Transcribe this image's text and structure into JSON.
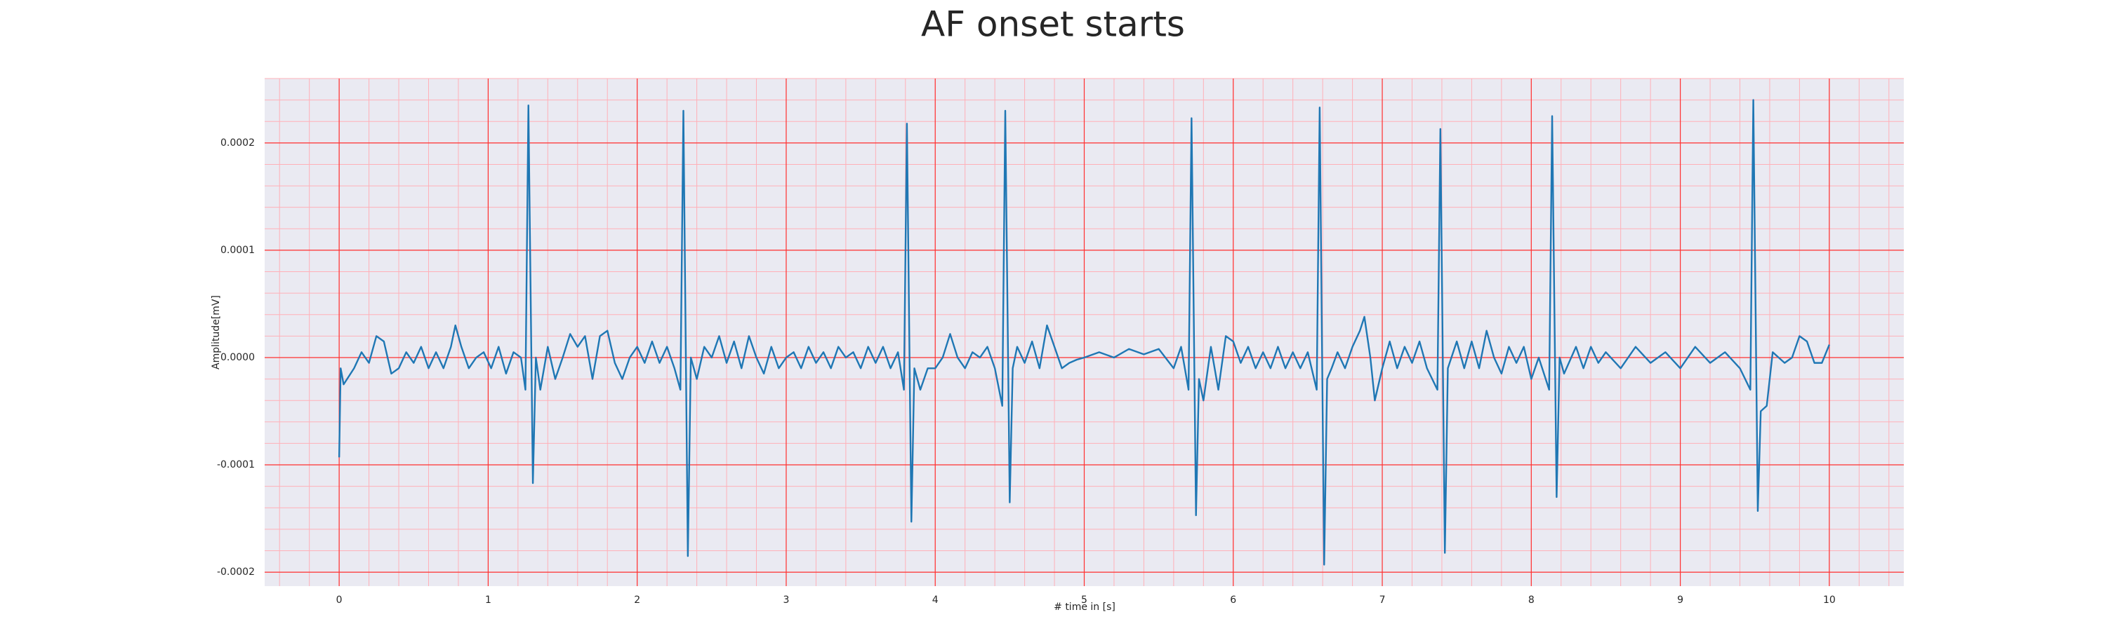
{
  "chart_data": {
    "type": "line",
    "title": "AF onset starts",
    "xlabel": "# time in [s]",
    "ylabel": "Amplitude[mV]",
    "x": [
      0,
      0.01,
      0.03,
      0.1,
      0.15,
      0.2,
      0.25,
      0.3,
      0.35,
      0.4,
      0.45,
      0.5,
      0.55,
      0.6,
      0.65,
      0.7,
      0.75,
      0.78,
      0.82,
      0.87,
      0.92,
      0.97,
      1.02,
      1.07,
      1.12,
      1.17,
      1.22,
      1.25,
      1.27,
      1.3,
      1.32,
      1.35,
      1.4,
      1.45,
      1.5,
      1.55,
      1.6,
      1.65,
      1.7,
      1.75,
      1.8,
      1.85,
      1.9,
      1.95,
      2.0,
      2.05,
      2.1,
      2.15,
      2.2,
      2.25,
      2.29,
      2.31,
      2.34,
      2.36,
      2.4,
      2.45,
      2.5,
      2.55,
      2.6,
      2.65,
      2.7,
      2.75,
      2.8,
      2.85,
      2.9,
      2.95,
      3.0,
      3.05,
      3.1,
      3.15,
      3.2,
      3.25,
      3.3,
      3.35,
      3.4,
      3.45,
      3.5,
      3.55,
      3.6,
      3.65,
      3.7,
      3.75,
      3.79,
      3.81,
      3.84,
      3.86,
      3.9,
      3.95,
      4.0,
      4.05,
      4.1,
      4.15,
      4.2,
      4.25,
      4.3,
      4.35,
      4.4,
      4.45,
      4.47,
      4.5,
      4.52,
      4.55,
      4.6,
      4.65,
      4.7,
      4.75,
      4.8,
      4.85,
      4.9,
      4.95,
      5.0,
      5.1,
      5.2,
      5.3,
      5.4,
      5.5,
      5.6,
      5.65,
      5.7,
      5.72,
      5.75,
      5.77,
      5.8,
      5.85,
      5.9,
      5.95,
      6.0,
      6.05,
      6.1,
      6.15,
      6.2,
      6.25,
      6.3,
      6.35,
      6.4,
      6.45,
      6.5,
      6.56,
      6.58,
      6.61,
      6.63,
      6.66,
      6.7,
      6.75,
      6.8,
      6.85,
      6.88,
      6.92,
      6.95,
      7.0,
      7.05,
      7.1,
      7.15,
      7.2,
      7.25,
      7.3,
      7.37,
      7.39,
      7.42,
      7.44,
      7.5,
      7.55,
      7.6,
      7.65,
      7.7,
      7.75,
      7.8,
      7.85,
      7.9,
      7.95,
      8.0,
      8.05,
      8.12,
      8.14,
      8.17,
      8.19,
      8.22,
      8.3,
      8.35,
      8.4,
      8.45,
      8.5,
      8.6,
      8.7,
      8.8,
      8.9,
      9.0,
      9.1,
      9.2,
      9.3,
      9.4,
      9.47,
      9.49,
      9.52,
      9.54,
      9.58,
      9.62,
      9.7,
      9.75,
      9.8,
      9.85,
      9.9,
      9.95,
      10.0
    ],
    "series": [
      {
        "color": "#1f77b4",
        "values": [
          -9.3e-05,
          -1e-05,
          -2.5e-05,
          -1e-05,
          5e-06,
          -5e-06,
          2e-05,
          1.5e-05,
          -1.5e-05,
          -1e-05,
          5e-06,
          -5e-06,
          1e-05,
          -1e-05,
          5e-06,
          -1e-05,
          1e-05,
          3e-05,
          1e-05,
          -1e-05,
          0,
          5e-06,
          -1e-05,
          1e-05,
          -1.5e-05,
          5e-06,
          0,
          -3e-05,
          0.000235,
          -0.000117,
          0,
          -3e-05,
          1e-05,
          -2e-05,
          0,
          2.2e-05,
          1e-05,
          2e-05,
          -2e-05,
          2e-05,
          2.5e-05,
          -5e-06,
          -2e-05,
          0,
          1e-05,
          -5e-06,
          1.5e-05,
          -5e-06,
          1e-05,
          -1e-05,
          -3e-05,
          0.00023,
          -0.000185,
          0,
          -2e-05,
          1e-05,
          0,
          2e-05,
          -5e-06,
          1.5e-05,
          -1e-05,
          2e-05,
          0,
          -1.5e-05,
          1e-05,
          -1e-05,
          0,
          5e-06,
          -1e-05,
          1e-05,
          -5e-06,
          5e-06,
          -1e-05,
          1e-05,
          0,
          5e-06,
          -1e-05,
          1e-05,
          -5e-06,
          1e-05,
          -1e-05,
          5e-06,
          -3e-05,
          0.000218,
          -0.000153,
          -1e-05,
          -3e-05,
          -1e-05,
          -1e-05,
          0,
          2.2e-05,
          0,
          -1e-05,
          5e-06,
          0,
          1e-05,
          -1e-05,
          -4.5e-05,
          0.00023,
          -0.000135,
          -1e-05,
          1e-05,
          -5e-06,
          1.5e-05,
          -1e-05,
          3e-05,
          1e-05,
          -1e-05,
          -5e-06,
          -2e-06,
          0,
          5e-06,
          0,
          8e-06,
          3e-06,
          8e-06,
          -1e-05,
          1e-05,
          -3e-05,
          0.000223,
          -0.000147,
          -2e-05,
          -4e-05,
          1e-05,
          -3e-05,
          2e-05,
          1.5e-05,
          -5e-06,
          1e-05,
          -1e-05,
          5e-06,
          -1e-05,
          1e-05,
          -1e-05,
          5e-06,
          -1e-05,
          5e-06,
          -3e-05,
          0.000233,
          -0.000193,
          -2e-05,
          -1e-05,
          5e-06,
          -1e-05,
          1e-05,
          2.5e-05,
          3.8e-05,
          0,
          -4e-05,
          -1e-05,
          1.5e-05,
          -1e-05,
          1e-05,
          -5e-06,
          1.5e-05,
          -1e-05,
          -3e-05,
          0.000213,
          -0.000182,
          -1e-05,
          1.5e-05,
          -1e-05,
          1.5e-05,
          -1e-05,
          2.5e-05,
          0,
          -1.5e-05,
          1e-05,
          -5e-06,
          1e-05,
          -2e-05,
          0,
          -3e-05,
          0.000225,
          -0.00013,
          0,
          -1.5e-05,
          1e-05,
          -1e-05,
          1e-05,
          -5e-06,
          5e-06,
          -1e-05,
          1e-05,
          -5e-06,
          5e-06,
          -1e-05,
          1e-05,
          -5e-06,
          5e-06,
          -1e-05,
          -3e-05,
          0.00024,
          -0.000143,
          -5e-05,
          -4.5e-05,
          5e-06,
          -5e-06,
          0,
          2e-05,
          1.5e-05,
          -5e-06,
          -5e-06,
          1.2e-05
        ]
      }
    ],
    "xlim": [
      -0.5,
      10.5
    ],
    "ylim": [
      -0.000213,
      0.00026
    ],
    "xticks": [
      0,
      1,
      2,
      3,
      4,
      5,
      6,
      7,
      8,
      9,
      10
    ],
    "yticks": [
      {
        "value": -0.0002,
        "label": "-0.0002"
      },
      {
        "value": -0.0001,
        "label": "-0.0001"
      },
      {
        "value": 0,
        "label": "0.0000"
      },
      {
        "value": 0.0001,
        "label": "0.0001"
      },
      {
        "value": 0.0002,
        "label": "0.0002"
      }
    ],
    "grid": true,
    "minor_grid_divisions": 5,
    "grid_color": "#ff3030",
    "minor_grid_color": "#ffb0b8",
    "background": "#eaeaf2"
  }
}
